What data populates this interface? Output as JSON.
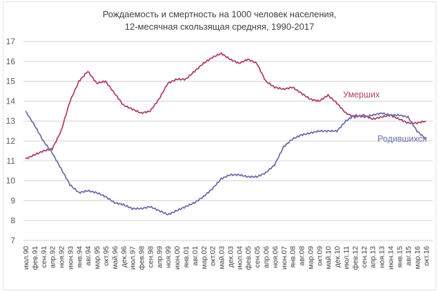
{
  "chart_data": {
    "type": "line",
    "title": "Рождаемость и смертность на 1000 человек населения,",
    "subtitle": "12-месячная скользящая средняя, 1990-2017",
    "xlabel": "",
    "ylabel": "",
    "ylim": [
      7,
      17
    ],
    "yticks": [
      7,
      8,
      9,
      10,
      11,
      12,
      13,
      14,
      15,
      16,
      17
    ],
    "grid": true,
    "legend": "inline labels at right",
    "categories": [
      "июл.90",
      "фев.91",
      "сен.91",
      "апр.92",
      "ноя.92",
      "июн.93",
      "янв.94",
      "авг.94",
      "мар.95",
      "окт.95",
      "май.96",
      "дек.96",
      "июл.97",
      "фев.98",
      "сен.98",
      "апр.99",
      "ноя.99",
      "июн.00",
      "янв.01",
      "авг.01",
      "мар.02",
      "окт.02",
      "май.03",
      "дек.03",
      "июл.04",
      "фев.05",
      "сен.05",
      "апр.06",
      "ноя.06",
      "июн.07",
      "янв.08",
      "авг.08",
      "мар.09",
      "окт.09",
      "май.10",
      "дек.10",
      "июл.11",
      "фев.12",
      "сен.12",
      "апр.13",
      "ноя.13",
      "июн.14",
      "янв.15",
      "авг.15",
      "мар.16",
      "окт.16"
    ],
    "series": [
      {
        "name": "Умерших",
        "color": "#b0406e",
        "values": [
          11.1,
          11.3,
          11.5,
          11.6,
          12.5,
          14.0,
          15.0,
          15.5,
          14.9,
          15.0,
          14.4,
          13.8,
          13.6,
          13.4,
          13.5,
          14.1,
          14.9,
          15.1,
          15.1,
          15.5,
          15.9,
          16.2,
          16.4,
          16.1,
          15.9,
          16.1,
          15.9,
          15.0,
          14.7,
          14.6,
          14.7,
          14.4,
          14.1,
          14.0,
          14.3,
          13.9,
          13.4,
          13.2,
          13.3,
          13.1,
          13.2,
          13.3,
          13.1,
          12.9,
          12.9,
          13.0
        ]
      },
      {
        "name": "Родившихся",
        "color": "#6e6eaa",
        "values": [
          13.5,
          12.8,
          12.0,
          11.4,
          10.6,
          9.8,
          9.4,
          9.5,
          9.4,
          9.2,
          8.9,
          8.8,
          8.6,
          8.6,
          8.7,
          8.5,
          8.3,
          8.5,
          8.7,
          8.9,
          9.2,
          9.6,
          10.1,
          10.3,
          10.3,
          10.2,
          10.2,
          10.4,
          10.8,
          11.7,
          12.1,
          12.3,
          12.4,
          12.5,
          12.5,
          12.5,
          13.0,
          13.3,
          13.2,
          13.3,
          13.4,
          13.3,
          13.3,
          13.2,
          12.5,
          12.1
        ]
      }
    ]
  },
  "labels": {
    "deaths": "Умерших",
    "births": "Родившихся"
  }
}
